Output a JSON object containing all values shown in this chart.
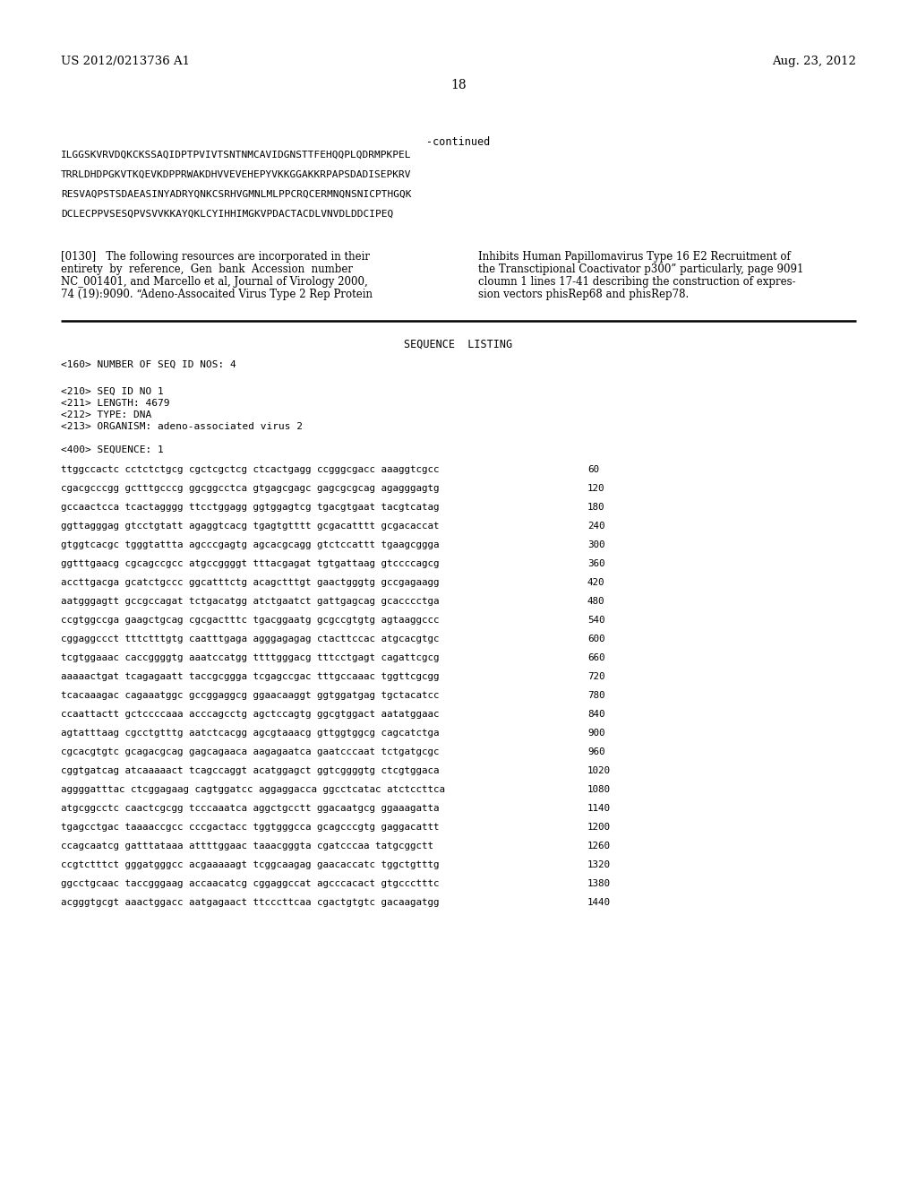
{
  "header_left": "US 2012/0213736 A1",
  "header_right": "Aug. 23, 2012",
  "page_number": "18",
  "continued_label": "-continued",
  "seq_lines": [
    "ILGGSKVRVDQKCKSSAQIDPTPVIVTSNTNMCAVIDGNSTTFEHQQPLQDRMPKPEL",
    "TRRLDHDPGKVTKQEVKDPPRWAKDHVVEVEHEPYVKKGGAKKRPAPSDADISEPKRV",
    "RESVAQPSTSDAEASINYADRYQNKCSRHVGMNLMLPPCRQCERMNQNSNICPTHGQK",
    "DCLECPPVSESQPVSVVKKAYQKLCYIHHIMGKVPDACTACDLVNVDLDDCIPEQ"
  ],
  "left_para_lines": [
    "[0130]   The following resources are incorporated in their",
    "entirety  by  reference,  Gen  bank  Accession  number",
    "NC_001401, and Marcello et al, Journal of Virology 2000,",
    "74 (19):9090. “Adeno-Assocaited Virus Type 2 Rep Protein"
  ],
  "right_para_lines": [
    "Inhibits Human Papillomavirus Type 16 E2 Recruitment of",
    "the Transctipional Coactivator p300” particularly, page 9091",
    "cloumn 1 lines 17-41 describing the construction of expres-",
    "sion vectors phisRep68 and phisRep78."
  ],
  "seq_listing_title": "SEQUENCE  LISTING",
  "seq_header_lines": [
    "<160> NUMBER OF SEQ ID NOS: 4",
    "<210> SEQ ID NO 1",
    "<211> LENGTH: 4679",
    "<212> TYPE: DNA",
    "<213> ORGANISM: adeno-associated virus 2",
    "<400> SEQUENCE: 1"
  ],
  "sequence_data": [
    [
      "ttggccactc cctctctgcg cgctcgctcg ctcactgagg ccgggcgacc aaaggtcgcc",
      "60"
    ],
    [
      "cgacgcccgg gctttgcccg ggcggcctca gtgagcgagc gagcgcgcag agagggagtg",
      "120"
    ],
    [
      "gccaactcca tcactagggg ttcctggagg ggtggagtcg tgacgtgaat tacgtcatag",
      "180"
    ],
    [
      "ggttagggag gtcctgtatt agaggtcacg tgagtgtttt gcgacatttt gcgacaccat",
      "240"
    ],
    [
      "gtggtcacgc tgggtattta agcccgagtg agcacgcagg gtctccattt tgaagcggga",
      "300"
    ],
    [
      "ggtttgaacg cgcagccgcc atgccggggt tttacgagat tgtgattaag gtccccagcg",
      "360"
    ],
    [
      "accttgacga gcatctgccc ggcatttctg acagctttgt gaactgggtg gccgagaagg",
      "420"
    ],
    [
      "aatgggagtt gccgccagat tctgacatgg atctgaatct gattgagcag gcacccctga",
      "480"
    ],
    [
      "ccgtggccga gaagctgcag cgcgactttc tgacggaatg gcgccgtgtg agtaaggccc",
      "540"
    ],
    [
      "cggaggccct tttctttgtg caatttgaga agggagagag ctacttccac atgcacgtgc",
      "600"
    ],
    [
      "tcgtggaaac caccggggtg aaatccatgg ttttgggacg tttcctgagt cagattcgcg",
      "660"
    ],
    [
      "aaaaactgat tcagagaatt taccgcggga tcgagccgac tttgccaaac tggttcgcgg",
      "720"
    ],
    [
      "tcacaaagac cagaaatggc gccggaggcg ggaacaaggt ggtggatgag tgctacatcc",
      "780"
    ],
    [
      "ccaattactt gctccccaaa acccagcctg agctccagtg ggcgtggact aatatggaac",
      "840"
    ],
    [
      "agtatttaag cgcctgtttg aatctcacgg agcgtaaacg gttggtggcg cagcatctga",
      "900"
    ],
    [
      "cgcacgtgtc gcagacgcag gagcagaaca aagagaatca gaatcccaat tctgatgcgc",
      "960"
    ],
    [
      "cggtgatcag atcaaaaact tcagccaggt acatggagct ggtcggggtg ctcgtggaca",
      "1020"
    ],
    [
      "aggggatttac ctcggagaag cagtggatcc aggaggacca ggcctcatac atctccttca",
      "1080"
    ],
    [
      "atgcggcctc caactcgcgg tcccaaatca aggctgcctt ggacaatgcg ggaaagatta",
      "1140"
    ],
    [
      "tgagcctgac taaaaccgcc cccgactacc tggtgggcca gcagcccgtg gaggacattt",
      "1200"
    ],
    [
      "ccagcaatcg gatttataaa attttggaac taaacgggta cgatcccaa tatgcggctt",
      "1260"
    ],
    [
      "ccgtctttct gggatgggcc acgaaaaagt tcggcaagag gaacaccatc tggctgtttg",
      "1320"
    ],
    [
      "ggcctgcaac taccgggaag accaacatcg cggaggccat agcccacact gtgccctttc",
      "1380"
    ],
    [
      "acgggtgcgt aaactggacc aatgagaact ttcccttcaa cgactgtgtc gacaagatgg",
      "1440"
    ]
  ]
}
